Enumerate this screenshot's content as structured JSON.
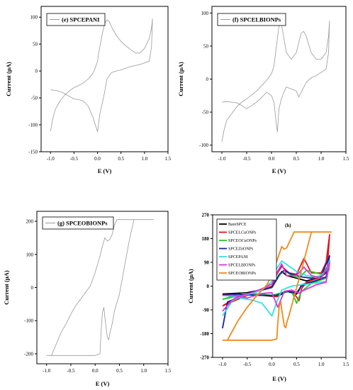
{
  "chart_data": [
    {
      "type": "line",
      "legend": [
        "(e) SPCEPANI"
      ],
      "legend_placement": "top-left",
      "xlabel": "E (V)",
      "ylabel": "Current (µA)",
      "xlim": [
        -1.2,
        1.5
      ],
      "ylim": [
        -150,
        120
      ],
      "xticks": [
        "-1.0",
        "-0.5",
        "0.0",
        "0.5",
        "1.0",
        "1.5"
      ],
      "yticks": [
        "-150",
        "-100",
        "-50",
        "0",
        "50",
        "100"
      ],
      "series": [
        {
          "color": "#999999",
          "x": [
            -1.0,
            -0.95,
            -0.9,
            -0.8,
            -0.7,
            -0.6,
            -0.5,
            -0.4,
            -0.3,
            -0.2,
            -0.1,
            -0.05,
            0.0,
            0.02,
            0.05,
            0.1,
            0.15,
            0.2,
            0.25,
            0.3,
            0.4,
            0.5,
            0.6,
            0.7,
            0.8,
            0.9,
            1.0,
            1.1,
            1.15,
            1.17,
            1.15,
            1.1,
            1.0,
            0.9,
            0.8,
            0.7,
            0.6,
            0.5,
            0.4,
            0.3,
            0.2,
            0.15,
            0.1,
            0.05,
            0.0,
            -0.1,
            -0.2,
            -0.3,
            -0.4,
            -0.5,
            -0.6,
            -0.7,
            -0.8,
            -0.9,
            -1.0
          ],
          "y": [
            -112,
            -88,
            -72,
            -56,
            -45,
            -37,
            -31,
            -27,
            -22,
            -15,
            -5,
            5,
            18,
            30,
            45,
            68,
            88,
            95,
            92,
            82,
            66,
            55,
            47,
            40,
            34,
            33,
            42,
            60,
            80,
            97,
            45,
            18,
            15,
            12,
            10,
            8,
            5,
            2,
            0,
            -3,
            -15,
            -40,
            -60,
            -80,
            -113,
            -85,
            -65,
            -56,
            -53,
            -52,
            -47,
            -42,
            -38,
            -36,
            -35
          ]
        }
      ]
    },
    {
      "type": "line",
      "legend": [
        "(f) SPCELBIONPs"
      ],
      "legend_placement": "top-left",
      "xlabel": "E (V)",
      "ylabel": "Current (µA)",
      "xlim": [
        -1.2,
        1.5
      ],
      "ylim": [
        -110,
        110
      ],
      "xticks": [
        "-1.0",
        "-0.5",
        "0.0",
        "0.5",
        "1.0",
        "1.5"
      ],
      "yticks": [
        "-100",
        "-50",
        "0",
        "50",
        "100"
      ],
      "series": [
        {
          "color": "#999999",
          "x": [
            -1.0,
            -0.95,
            -0.9,
            -0.8,
            -0.7,
            -0.6,
            -0.5,
            -0.4,
            -0.3,
            -0.2,
            -0.1,
            0.0,
            0.05,
            0.1,
            0.15,
            0.2,
            0.25,
            0.3,
            0.4,
            0.5,
            0.55,
            0.6,
            0.65,
            0.7,
            0.8,
            0.9,
            1.0,
            1.1,
            1.15,
            1.17,
            1.15,
            1.1,
            1.0,
            0.9,
            0.8,
            0.7,
            0.6,
            0.55,
            0.5,
            0.4,
            0.3,
            0.25,
            0.2,
            0.15,
            0.12,
            0.1,
            0.05,
            0.0,
            -0.1,
            -0.2,
            -0.3,
            -0.4,
            -0.5,
            -0.6,
            -0.7,
            -0.8,
            -0.9,
            -1.0
          ],
          "y": [
            -95,
            -75,
            -62,
            -52,
            -42,
            -35,
            -30,
            -24,
            -18,
            -10,
            -2,
            8,
            20,
            50,
            80,
            84,
            62,
            40,
            30,
            40,
            55,
            70,
            72,
            65,
            40,
            30,
            30,
            40,
            65,
            88,
            40,
            15,
            10,
            5,
            2,
            -5,
            -20,
            -27,
            -18,
            -15,
            -12,
            -20,
            -30,
            -45,
            -80,
            -70,
            -35,
            -25,
            -20,
            -28,
            -35,
            -40,
            -45,
            -40,
            -36,
            -35,
            -34,
            -35
          ]
        }
      ]
    },
    {
      "type": "line",
      "legend": [
        "(g) SPCEOBIONPs"
      ],
      "legend_placement": "top-left",
      "xlabel": "E (V)",
      "ylabel": "Current (µA)",
      "xlim": [
        -1.2,
        1.5
      ],
      "ylim": [
        -230,
        230
      ],
      "xticks": [
        "-1.0",
        "-0.5",
        "0.0",
        "0.5",
        "1.0",
        "1.5"
      ],
      "yticks": [
        "-200",
        "-100",
        "0",
        "100",
        "200"
      ],
      "series": [
        {
          "color": "#999999",
          "x": [
            -0.9,
            -0.8,
            -0.7,
            -0.6,
            -0.5,
            -0.4,
            -0.3,
            -0.2,
            -0.1,
            -0.05,
            0.0,
            0.05,
            0.1,
            0.15,
            0.2,
            0.25,
            0.3,
            0.35,
            0.4,
            0.45,
            0.5,
            0.6,
            1.2,
            0.8,
            0.7,
            0.6,
            0.5,
            0.4,
            0.35,
            0.3,
            0.28,
            0.25,
            0.2,
            0.18,
            0.15,
            0.12,
            0.1,
            0.0,
            -0.5,
            -1.0
          ],
          "y": [
            -205,
            -170,
            -135,
            -110,
            -80,
            -55,
            -35,
            -15,
            5,
            25,
            45,
            70,
            95,
            125,
            150,
            140,
            145,
            160,
            190,
            205,
            205,
            205,
            205,
            205,
            140,
            60,
            -20,
            -70,
            -110,
            -140,
            -158,
            -150,
            -90,
            -60,
            -75,
            -140,
            -200,
            -205,
            -205,
            -205
          ]
        }
      ]
    },
    {
      "type": "line",
      "xlabel": "E (V)",
      "ylabel": "Current (µA)",
      "panel_label": "(h)",
      "legend_placement": "top-left",
      "xlim": [
        -1.2,
        1.5
      ],
      "ylim": [
        -270,
        270
      ],
      "xticks": [
        "-1.0",
        "-0.5",
        "0.0",
        "0.5",
        "1.0",
        "1.5"
      ],
      "yticks": [
        "-270",
        "-180",
        "-90",
        "0",
        "90",
        "180",
        "270"
      ],
      "series": [
        {
          "name": "BareSPCE",
          "color": "#000000",
          "x": [
            -1.0,
            -0.5,
            0.0,
            0.15,
            0.2,
            0.3,
            0.5,
            0.7,
            1.0,
            1.15,
            1.17,
            1.1,
            0.8,
            0.6,
            0.55,
            0.5,
            0.3,
            0.1,
            -0.2,
            -0.6,
            -1.0
          ],
          "y": [
            -30,
            -25,
            -5,
            40,
            55,
            40,
            30,
            20,
            35,
            60,
            95,
            30,
            15,
            5,
            -15,
            -30,
            -20,
            -40,
            -35,
            -32,
            -35
          ]
        },
        {
          "name": "SPCELCuONPs",
          "color": "#e0141e",
          "x": [
            -1.0,
            -0.5,
            0.0,
            0.1,
            0.2,
            0.35,
            0.5,
            0.65,
            0.8,
            1.0,
            1.1,
            1.17,
            1.12,
            1.0,
            0.7,
            0.6,
            0.55,
            0.4,
            0.2,
            0.1,
            -0.2,
            -0.6,
            -1.0
          ],
          "y": [
            -75,
            -35,
            0,
            45,
            75,
            50,
            45,
            105,
            50,
            50,
            90,
            195,
            60,
            35,
            15,
            -10,
            -55,
            -15,
            -25,
            -40,
            -30,
            -30,
            -75
          ]
        },
        {
          "name": "SPCEOCuONPs",
          "color": "#22cc22",
          "x": [
            -1.0,
            -0.5,
            0.0,
            0.15,
            0.25,
            0.4,
            0.55,
            0.7,
            1.0,
            1.17,
            1.1,
            0.8,
            0.6,
            0.5,
            0.4,
            0.2,
            0.0,
            -0.3,
            -0.6,
            -1.0
          ],
          "y": [
            -50,
            -30,
            -5,
            40,
            60,
            40,
            30,
            60,
            45,
            85,
            30,
            10,
            -20,
            -65,
            -20,
            -25,
            -35,
            -30,
            -28,
            -50
          ]
        },
        {
          "name": "SPCEZnONPs",
          "color": "#1422aa",
          "x": [
            -1.0,
            -0.9,
            -0.5,
            0.0,
            0.15,
            0.25,
            0.4,
            0.6,
            0.8,
            1.0,
            1.17,
            1.1,
            0.8,
            0.6,
            0.5,
            0.3,
            0.1,
            -0.3,
            -0.7,
            -1.0
          ],
          "y": [
            -160,
            -60,
            -30,
            -5,
            45,
            60,
            45,
            35,
            30,
            40,
            115,
            35,
            15,
            0,
            -25,
            -20,
            -35,
            -35,
            -30,
            -35
          ]
        },
        {
          "name": "SPCEPANI",
          "color": "#33e0e0",
          "x": [
            -1.0,
            -0.8,
            -0.6,
            -0.4,
            -0.2,
            0.0,
            0.1,
            0.2,
            0.3,
            0.5,
            0.7,
            0.9,
            1.0,
            1.1,
            1.17,
            1.1,
            0.9,
            0.6,
            0.4,
            0.2,
            0.1,
            0.0,
            -0.2,
            -0.4,
            -0.6,
            -0.8,
            -1.0
          ],
          "y": [
            -112,
            -56,
            -37,
            -27,
            -15,
            18,
            68,
            95,
            82,
            55,
            40,
            33,
            42,
            60,
            97,
            18,
            12,
            5,
            0,
            -15,
            -60,
            -113,
            -65,
            -53,
            -47,
            -38,
            -35
          ]
        },
        {
          "name": "SPCELBIONPs",
          "color": "#dd33dd",
          "x": [
            -1.0,
            -0.8,
            -0.6,
            -0.4,
            -0.2,
            0.0,
            0.1,
            0.2,
            0.3,
            0.5,
            0.65,
            0.8,
            1.0,
            1.17,
            1.1,
            0.9,
            0.6,
            0.55,
            0.4,
            0.25,
            0.12,
            0.0,
            -0.2,
            -0.5,
            -0.8,
            -1.0
          ],
          "y": [
            -95,
            -52,
            -35,
            -24,
            -10,
            8,
            50,
            84,
            40,
            40,
            72,
            40,
            30,
            88,
            15,
            5,
            -20,
            -27,
            -15,
            -20,
            -80,
            -25,
            -28,
            -45,
            -35,
            -35
          ]
        },
        {
          "name": "SPCEOBIONPs",
          "color": "#f08a1a",
          "x": [
            -0.9,
            -0.7,
            -0.5,
            -0.3,
            -0.1,
            0.0,
            0.1,
            0.2,
            0.25,
            0.3,
            0.45,
            0.6,
            1.2,
            0.8,
            0.6,
            0.45,
            0.35,
            0.3,
            0.28,
            0.25,
            0.2,
            0.18,
            0.15,
            0.12,
            0.1,
            0.0,
            -0.5,
            -1.0
          ],
          "y": [
            -205,
            -135,
            -80,
            -35,
            5,
            45,
            95,
            150,
            140,
            145,
            205,
            205,
            205,
            205,
            60,
            -40,
            -110,
            -140,
            -158,
            -150,
            -90,
            -60,
            -75,
            -140,
            -200,
            -205,
            -205,
            -205
          ]
        }
      ]
    }
  ]
}
